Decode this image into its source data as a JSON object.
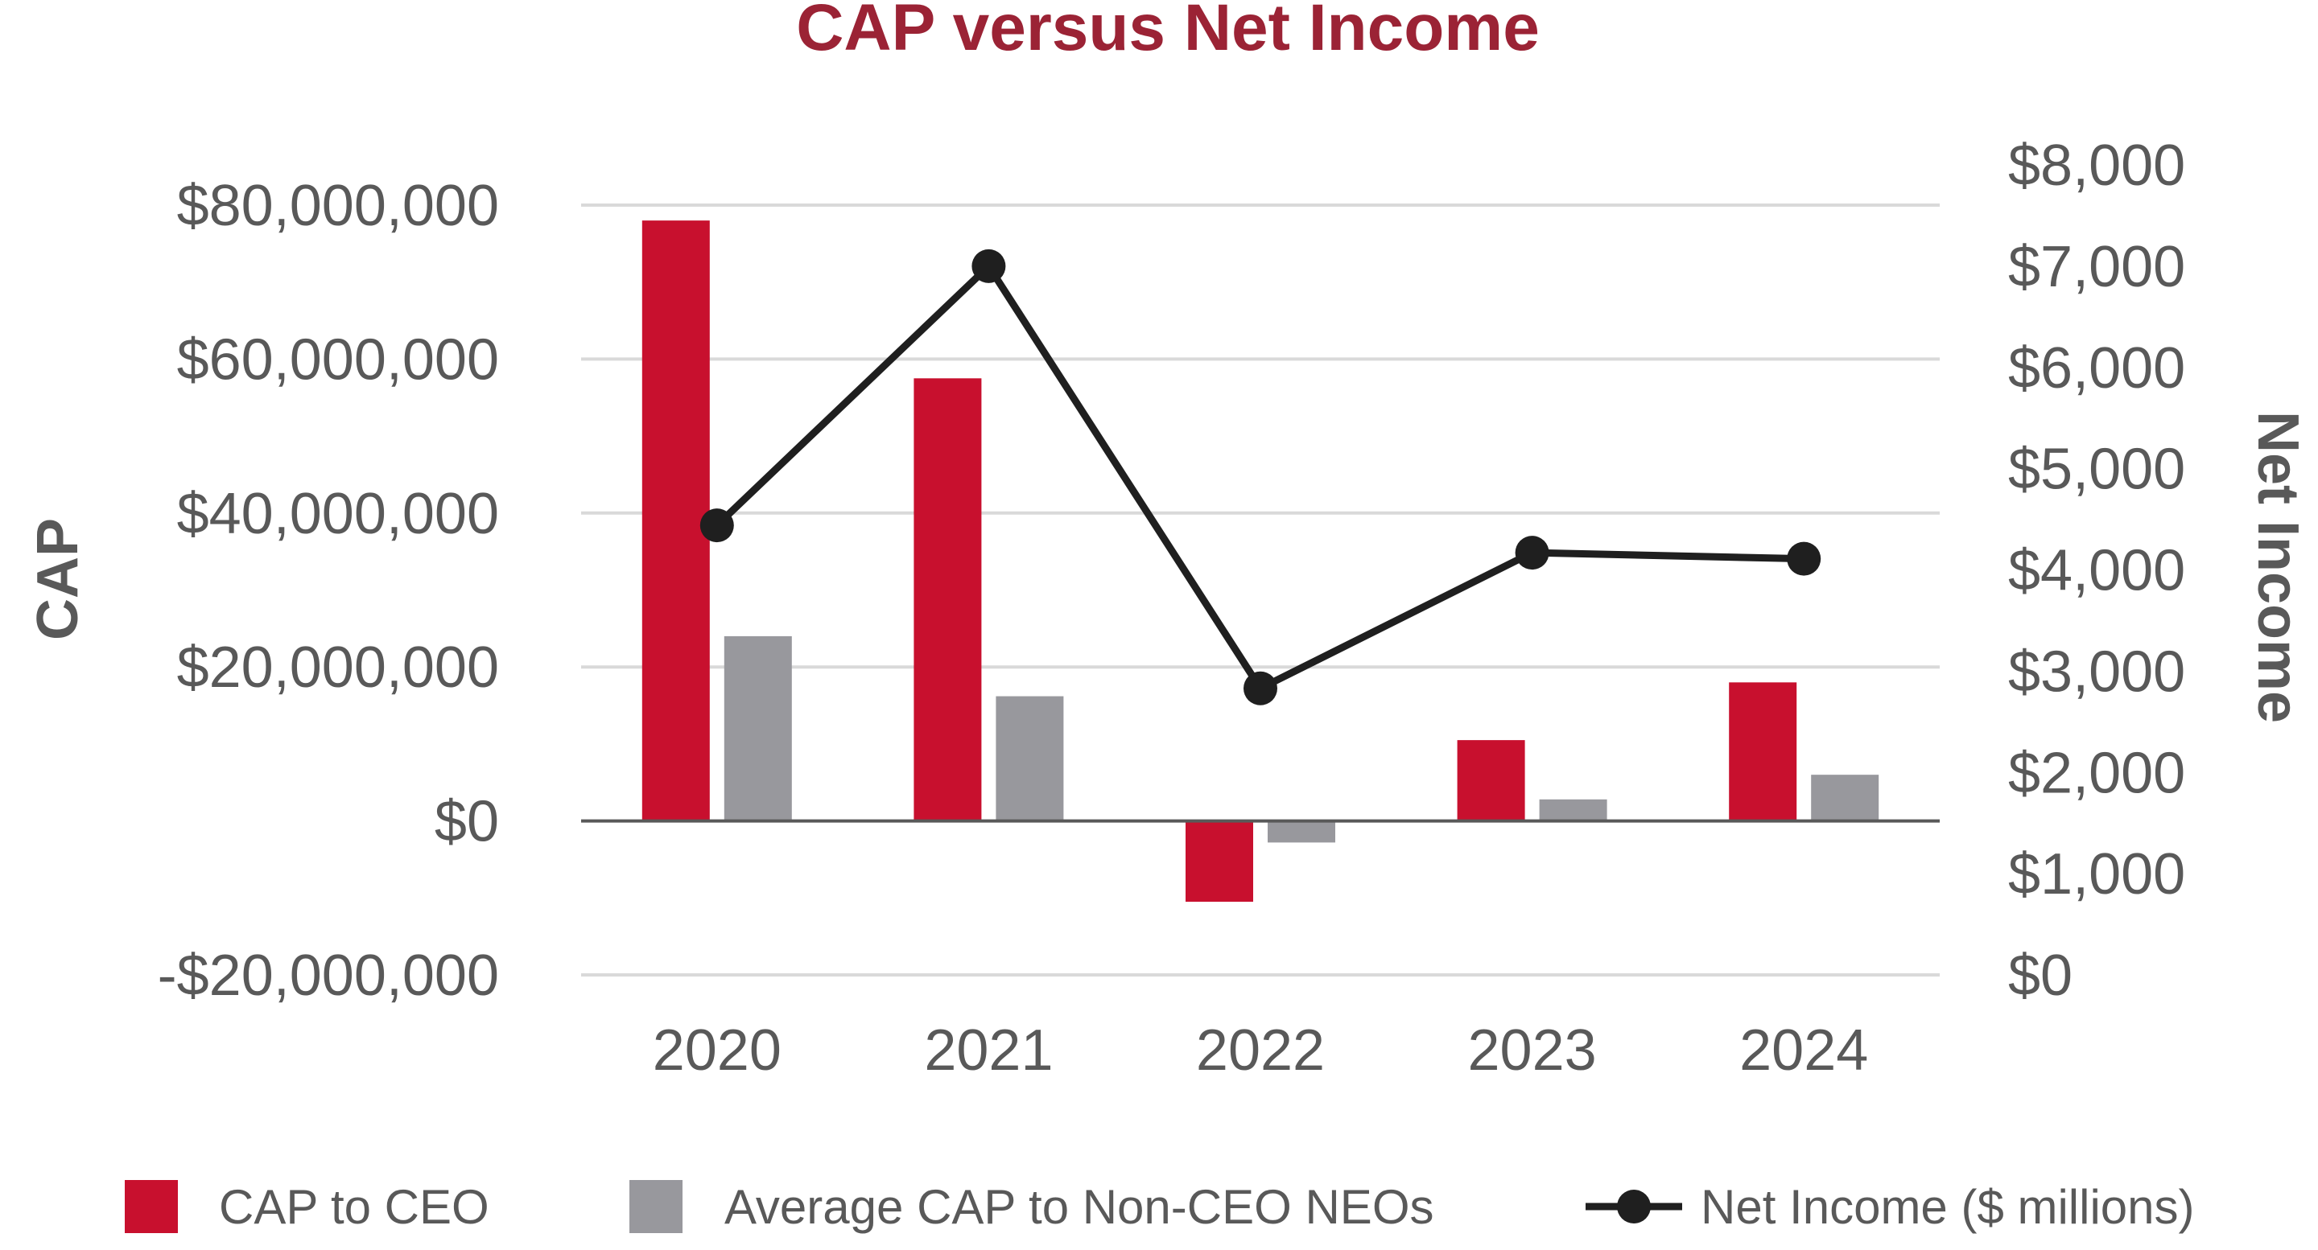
{
  "chart_data": {
    "type": "bar",
    "title": "CAP versus Net Income",
    "categories": [
      "2020",
      "2021",
      "2022",
      "2023",
      "2024"
    ],
    "y_left": {
      "label": "CAP",
      "ylim": [
        -20000000,
        80000000
      ],
      "ticks": [
        80000000,
        60000000,
        40000000,
        20000000,
        0,
        -20000000
      ],
      "tick_labels": [
        "$80,000,000",
        "$60,000,000",
        "$40,000,000",
        "$20,000,000",
        "$0",
        "-$20,000,000"
      ]
    },
    "y_right": {
      "label": "Net Income",
      "ylim": [
        0,
        8000
      ],
      "ticks": [
        8000,
        7000,
        6000,
        5000,
        4000,
        3000,
        2000,
        1000,
        0
      ],
      "tick_labels": [
        "$8,000",
        "$7,000",
        "$6,000",
        "$5,000",
        "$4,000",
        "$3,000",
        "$2,000",
        "$1,000",
        "$0"
      ]
    },
    "series": [
      {
        "name": "CAP to CEO",
        "type": "bar",
        "axis": "left",
        "color": "#C8102E",
        "values": [
          78000000,
          57500000,
          -10500000,
          10500000,
          18000000
        ]
      },
      {
        "name": "Average CAP to Non-CEO NEOs",
        "type": "bar",
        "axis": "left",
        "color": "#98989D",
        "values": [
          24000000,
          16200000,
          -2800000,
          2800000,
          6000000
        ]
      },
      {
        "name": "Net Income ($ millions)",
        "type": "line",
        "axis": "right",
        "color": "#1F1F1F",
        "values": [
          4440,
          7000,
          2830,
          4170,
          4110
        ]
      }
    ],
    "legend_position": "bottom",
    "grid": true
  },
  "colors": {
    "title": "#9B2335",
    "grid": "#D9D9D9",
    "zero_axis": "#595959",
    "text": "#595959"
  }
}
